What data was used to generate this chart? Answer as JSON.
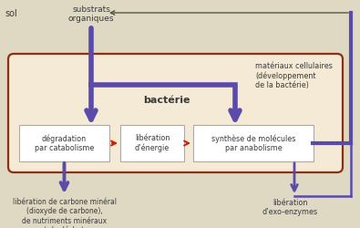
{
  "bg_color": "#dfd9c4",
  "box_fill": "#f5ead5",
  "box_edge": "#8b3010",
  "purple": "#5a4aaa",
  "red_arrow": "#cc2200",
  "text_color": "#3a3a3a",
  "dark_arrow": "#555544",
  "title": "bactérie",
  "sol_label": "sol",
  "substrats_label": "substrats\norganiques",
  "materiaux_label": "matériaux cellulaires\n(développement\nde la bactérie)",
  "degradation_label": "dégradation\npar catabolisme",
  "liberation_label": "libération\nd’énergie",
  "synthese_label": "synthèse de molécules\npar anabolisme",
  "carbone_label": "libération de carbone minéral\n(dioxyde de carbone),\nde nutriments minéraux\net de déchets",
  "exo_label": "libération\nd’exo-enzymes"
}
